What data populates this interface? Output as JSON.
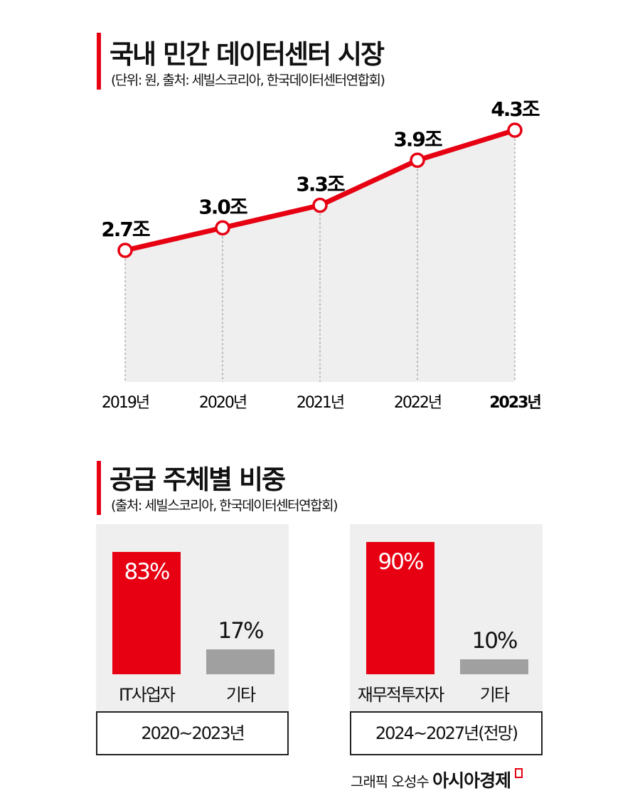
{
  "chart_data": [
    {
      "type": "line",
      "title": "국내 민간 데이터센터 시장",
      "subtitle": "(단위: 원, 출처: 세빌스코리아, 한국데이터센터연합회)",
      "categories": [
        "2019년",
        "2020년",
        "2021년",
        "2022년",
        "2023년"
      ],
      "values": [
        2.7,
        3.0,
        3.3,
        3.9,
        4.3
      ],
      "data_labels": [
        "2.7조",
        "3.0조",
        "3.3조",
        "3.9조",
        "4.3조"
      ],
      "unit": "조",
      "area_fill": true,
      "grid": false,
      "colors": {
        "line": "#e60012",
        "area": "#efefef"
      }
    },
    {
      "type": "bar",
      "title": "공급 주체별 비중",
      "subtitle": "(출처: 세빌스코리아, 한국데이터센터연합회)",
      "panels": [
        {
          "period": "2020~2023년",
          "categories": [
            "IT사업자",
            "기타"
          ],
          "values": [
            83,
            17
          ],
          "data_labels": [
            "83%",
            "17%"
          ]
        },
        {
          "period": "2024~2027년(전망)",
          "categories": [
            "재무적투자자",
            "기타"
          ],
          "values": [
            90,
            10
          ],
          "data_labels": [
            "90%",
            "10%"
          ]
        }
      ],
      "colors": {
        "primary": "#e60012",
        "other": "#a0a0a0",
        "panel": "#efefef"
      }
    }
  ],
  "credit": {
    "text": "그래픽 오성수",
    "brand": "아시아경제"
  }
}
